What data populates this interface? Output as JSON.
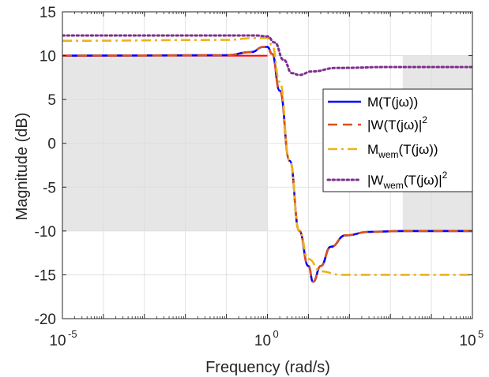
{
  "chart_data": {
    "type": "line",
    "xscale": "log",
    "xlim": [
      1e-05,
      100000
    ],
    "ylim": [
      -20,
      15
    ],
    "xlabel": "Frequency (rad/s)",
    "ylabel": "Magnitude (dB)",
    "xticks": [
      {
        "base": "10",
        "exp": "-5",
        "value": 1e-05
      },
      {
        "base": "10",
        "exp": "0",
        "value": 1
      },
      {
        "base": "10",
        "exp": "5",
        "value": 100000
      }
    ],
    "yticks": [
      "15",
      "10",
      "5",
      "0",
      "-5",
      "-10",
      "-15",
      "-20"
    ],
    "grid": true,
    "legend_position": "right",
    "legend": [
      {
        "main": "M(T(jω))",
        "sub": "",
        "rest": "",
        "sup": "",
        "color": "#0000ff",
        "style": "solid"
      },
      {
        "main": "|W(T(jω)|",
        "sub": "",
        "rest": "",
        "sup": "2",
        "color": "#d95319",
        "style": "dashed"
      },
      {
        "main": "M",
        "sub": "wem",
        "rest": "(T(jω))",
        "sup": "",
        "color": "#edb120",
        "style": "dashdot"
      },
      {
        "main": "|W",
        "sub": "wem",
        "rest": "(T(jω)|",
        "sup": "2",
        "color": "#7e2f8e",
        "style": "dotted"
      }
    ],
    "shaded_regions": [
      {
        "x": [
          1e-05,
          1
        ],
        "y": [
          -10,
          10
        ]
      },
      {
        "x": [
          2000,
          100000
        ],
        "y": [
          -10,
          10
        ]
      }
    ],
    "bound_lines": [
      {
        "x": [
          1e-05,
          1
        ],
        "y": [
          10,
          10
        ],
        "color": "#ff0000"
      },
      {
        "x": [
          2000,
          100000
        ],
        "y": [
          -10,
          -10
        ],
        "color": "#ff0000"
      }
    ],
    "series": [
      {
        "name": "M(T(jω))",
        "color": "#0000ff",
        "style": "solid",
        "width": 2.6,
        "points": [
          [
            1e-05,
            10
          ],
          [
            0.1,
            10.05
          ],
          [
            0.4,
            10.4
          ],
          [
            0.8,
            11.0
          ],
          [
            1,
            11.0
          ],
          [
            1.3,
            10.2
          ],
          [
            2,
            6
          ],
          [
            3.5,
            -2
          ],
          [
            6,
            -10
          ],
          [
            10,
            -14
          ],
          [
            13,
            -15.8
          ],
          [
            20,
            -14
          ],
          [
            35,
            -11.8
          ],
          [
            80,
            -10.5
          ],
          [
            300,
            -10.1
          ],
          [
            2000,
            -10
          ],
          [
            100000,
            -10
          ]
        ]
      },
      {
        "name": "|W(T(jω)|²",
        "color": "#d95319",
        "style": "dashed",
        "width": 2.6,
        "points": [
          [
            1e-05,
            10
          ],
          [
            0.1,
            10.05
          ],
          [
            0.4,
            10.4
          ],
          [
            0.8,
            11.0
          ],
          [
            1,
            11.0
          ],
          [
            1.3,
            10.2
          ],
          [
            2,
            6
          ],
          [
            3.5,
            -2
          ],
          [
            6,
            -10
          ],
          [
            10,
            -14
          ],
          [
            13,
            -15.8
          ],
          [
            20,
            -14
          ],
          [
            35,
            -11.8
          ],
          [
            80,
            -10.5
          ],
          [
            300,
            -10.1
          ],
          [
            2000,
            -10
          ],
          [
            100000,
            -10
          ]
        ]
      },
      {
        "name": "M_wem(T(jω))",
        "color": "#edb120",
        "style": "dashdot",
        "width": 2.6,
        "points": [
          [
            1e-05,
            11.7
          ],
          [
            0.1,
            11.8
          ],
          [
            0.5,
            12
          ],
          [
            1,
            12
          ],
          [
            1.3,
            11.2
          ],
          [
            2,
            7
          ],
          [
            3.5,
            -2
          ],
          [
            6,
            -10
          ],
          [
            10,
            -13.2
          ],
          [
            20,
            -14.6
          ],
          [
            60,
            -15
          ],
          [
            100000,
            -15
          ]
        ]
      },
      {
        "name": "|W_wem(T(jω)|²",
        "color": "#7e2f8e",
        "style": "dotted",
        "width": 3,
        "points": [
          [
            1e-05,
            12.3
          ],
          [
            0.5,
            12.3
          ],
          [
            1,
            12.2
          ],
          [
            1.5,
            11.5
          ],
          [
            2.5,
            9.5
          ],
          [
            4,
            8
          ],
          [
            6,
            7.8
          ],
          [
            12,
            8.2
          ],
          [
            50,
            8.6
          ],
          [
            1000,
            8.7
          ],
          [
            100000,
            8.7
          ]
        ]
      }
    ]
  }
}
